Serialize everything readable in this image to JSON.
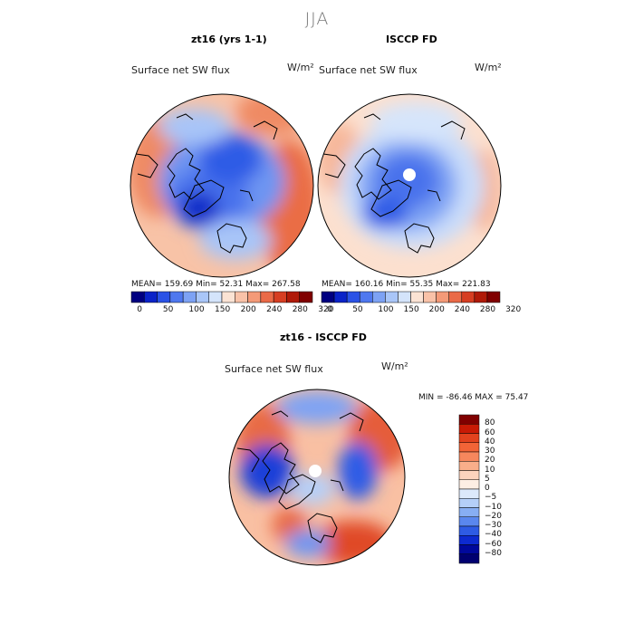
{
  "figure": {
    "season_title": "JJA"
  },
  "panels": [
    {
      "id": "model",
      "title": "zt16 (yrs 1-1)",
      "variable_label": "Surface net SW flux",
      "units": "W/m²",
      "stats_text": "MEAN= 159.69   Min=   52.31   Max=  267.58"
    },
    {
      "id": "obs",
      "title": "ISCCP FD",
      "variable_label": "Surface net SW flux",
      "units": "W/m²",
      "stats_text": "MEAN= 160.16   Min=   55.35   Max=  221.83"
    },
    {
      "id": "diff",
      "title": "zt16 - ISCCP FD",
      "variable_label": "Surface net SW flux",
      "units": "W/m²",
      "stats_text": "MIN = -86.46 MAX =  75.47"
    }
  ],
  "colorbars": {
    "absolute": {
      "colors": [
        "#000080",
        "#0a23c8",
        "#2a52e6",
        "#4f78ef",
        "#7da2f4",
        "#a9c6f8",
        "#d4e4fb",
        "#fbe3d4",
        "#f9c2a8",
        "#f49a78",
        "#ea6a47",
        "#d63e22",
        "#b01a08",
        "#800000"
      ],
      "tick_labels": [
        "0",
        "50",
        "100",
        "150",
        "200",
        "240",
        "280",
        "320"
      ]
    },
    "difference": {
      "colors": [
        "#800000",
        "#c81a05",
        "#e2421e",
        "#f26437",
        "#f6875d",
        "#f9ae8a",
        "#fcd3bd",
        "#fdeee4",
        "#dce9fb",
        "#b5cff8",
        "#87aef3",
        "#5a87ee",
        "#2e5be4",
        "#0d2ad0",
        "#00089c",
        "#000070"
      ],
      "tick_labels": [
        "80",
        "60",
        "40",
        "30",
        "20",
        "10",
        "5",
        "0",
        "−5",
        "−10",
        "−20",
        "−30",
        "−40",
        "−60",
        "−80"
      ]
    }
  },
  "colors": {
    "map_boundary": "#000000",
    "background": "#ffffff",
    "title_gray": "#777777"
  }
}
